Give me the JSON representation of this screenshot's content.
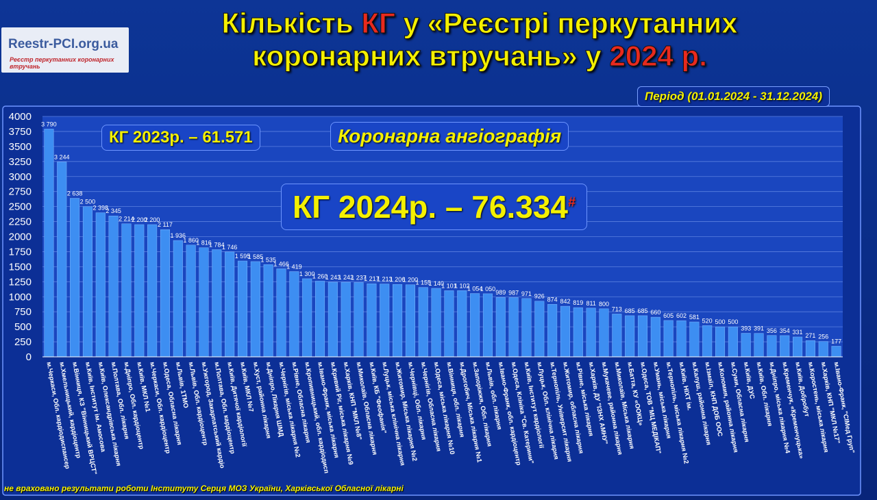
{
  "logo": {
    "name": "Reestr-PCI.org.ua",
    "tagline": "Реєстр перкутанних коронарних втручань"
  },
  "chart_data": {
    "type": "bar",
    "title": [
      [
        {
          "text": "Кількість ",
          "accent": false
        },
        {
          "text": "КГ",
          "accent": true
        },
        {
          "text": " у «Реєстрі перкутанних",
          "accent": false
        }
      ],
      [
        {
          "text": "коронарних втручань» у ",
          "accent": false
        },
        {
          "text": "2024 р.",
          "accent": true
        }
      ]
    ],
    "subtitle": "Період (01.01.2024 - 31.12.2024)",
    "annotations": [
      "КГ 2023р. – 61.571",
      "Коронарна ангіографія",
      "КГ 2024р. – 76.334"
    ],
    "annotation_mark": "#",
    "footnote": "не враховано результати роботи Інституту Серця МОЗ України, Харківської Обласної лікарні",
    "categories": [
      "м.Черкаси, Обл. кардіодиспансер",
      "м.Хмельницький, кардіоцентр",
      "м.Вінниця, КЗ \"Вінницький ВРЦСТ\"",
      "м.Київ, Інститут ім. Амосова",
      "м.Київ, Олександрівська лікарня",
      "м.Полтава, Обл. лікарня",
      "м.Дніпро, Обл. кардіоцентр",
      "м.Київ, МКЛ №1",
      "м.Черкаси, Обл. кардіоцентр",
      "м.Одеса, Обласна лікарня",
      "м.Львів, 1ТМО",
      "м.Львів, Обл. кардіоцентр",
      "м.Ужгород, Закарпатський кардіо",
      "м.Полтава, Обл. кардіоцентр",
      "м.Київ, Дитячої кардіології",
      "м.Київ, МКЛ №7",
      "м.Хуст, районна лікарня",
      "м.Дніпро, Лікарня ШМД",
      "м.Чернігів, міська лікарня №2",
      "м.Рівне, Обласна лікарня",
      "м.Кропивницький, обл. кардіодисп",
      "м.Івано-Франк, міська лікарня",
      "м.Кривий Ріг, міська лікарня №9",
      "м.Харків, КНП \"МКЛ №8\"",
      "м.Миколаїв, Обласна лікарня",
      "м.Київ, КБ \"Феофанія\"",
      "м.Луцьк, міська клінічна лікарня",
      "м.Житомир, Міська лікарня №2",
      "м.Чернівці, Обл. лікарня",
      "м.Чернігів, Обласна лікарня",
      "м.Одеса, міська лікарня №10",
      "м.Вінниця, обл. лікарня",
      "м.Дрогобич, Міська лікарня №1",
      "м.Запоріжжя, Обл. лікарня",
      "м.Львів, обл. лікарня",
      "м.Івано-Франк, обл. кардіоцентр",
      "м.Одеса, Клініка \"Св. Катерини\"",
      "м.Київ, Інститут кардіології",
      "м.Луцьк, Обл. клінічна лікарня",
      "м.Тернопіль, Університ лікарня",
      "м.Житомир, обласна лікарня",
      "м.Рівне, міська лікарня",
      "м.Харків, ДУ \"ІЗНХ АМНУ\"",
      "м.Мукачеве, районна лікарня",
      "м.Миколаїв, Міська лікарня",
      "м.Батта, КУ «ООКЦ»",
      "м.Одеса, ТОВ \"МЦ МЕДІКАП\"",
      "м.Умань, міська лікарня",
      "м.Тернопіль, міська лікарня №2",
      "м.Київ, НІХТ ім.",
      "м.Калуш, районна лікарня",
      "м.Ізмаїл, КНП ДОБ ООС",
      "м.Коломия, районна лікарня",
      "м.Суми, Обласна лікарня",
      "м.Київ, ДУС",
      "м.Київ, Обл. лікарня",
      "м.Дніпро, міська лікарня №4",
      "м.Кременчук, «Кременчуцька»",
      "м.Київ, Добробут",
      "м.Коростень, міська лікарня",
      "м.Харків, КНП \"МКЛ №17\"",
      "м.Івано-Франк, \"СІМед Груп\""
    ],
    "values": [
      3790,
      3244,
      2638,
      2500,
      2398,
      2345,
      2214,
      2200,
      2200,
      2117,
      1936,
      1860,
      1816,
      1784,
      1746,
      1595,
      1585,
      1535,
      1466,
      1419,
      1300,
      1260,
      1243,
      1242,
      1237,
      1217,
      1213,
      1206,
      1200,
      1155,
      1140,
      1101,
      1102,
      1054,
      1050,
      989,
      987,
      971,
      926,
      874,
      842,
      819,
      811,
      800,
      713,
      685,
      685,
      660,
      605,
      602,
      581,
      520,
      500,
      500,
      393,
      391,
      356,
      354,
      331,
      271,
      256,
      177
    ],
    "value_labels": [
      "3 790",
      "3 244",
      "2 638",
      "2 500",
      "2 398",
      "2 345",
      "2 214",
      "2 200",
      "2 200",
      "2 117",
      "1 936",
      "1 860",
      "1 816",
      "1 784",
      "1 746",
      "1 595",
      "1 585",
      "1 535",
      "1 466",
      "1 419",
      "1 300",
      "1 260",
      "1 243",
      "1 242",
      "1 237",
      "1 217",
      "1 213",
      "1 206",
      "1 200",
      "1 155",
      "1 140",
      "1 101",
      "1 102",
      "1 054",
      "1 050",
      "989",
      "987",
      "971",
      "926",
      "874",
      "842",
      "819",
      "811",
      "800",
      "713",
      "685",
      "685",
      "660",
      "605",
      "602",
      "581",
      "520",
      "500",
      "500",
      "393",
      "391",
      "356",
      "354",
      "331",
      "271",
      "256",
      "177"
    ],
    "color": "#3d8ef2",
    "ylim": [
      0,
      4000
    ],
    "yticks": [
      0,
      250,
      500,
      750,
      1000,
      1250,
      1500,
      1750,
      2000,
      2250,
      2500,
      2750,
      3000,
      3250,
      3500,
      3750,
      4000
    ],
    "grid": true
  }
}
